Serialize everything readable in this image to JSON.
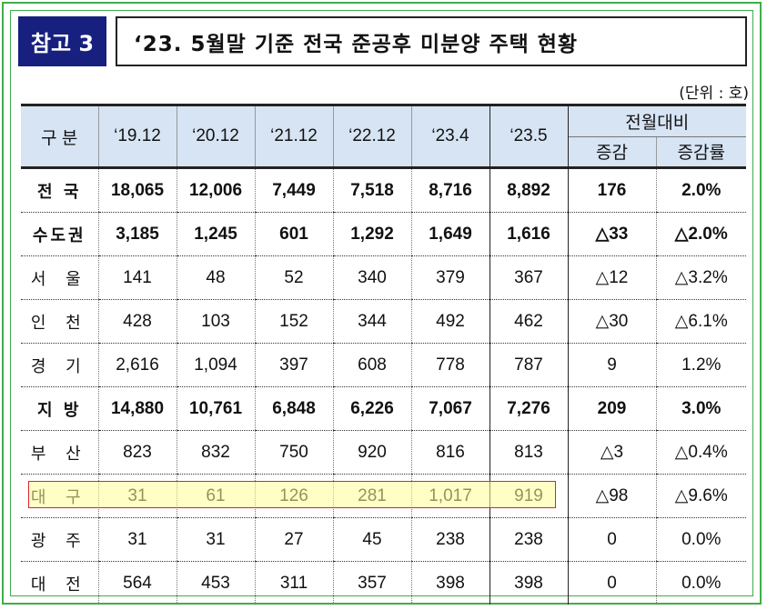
{
  "badge": "참고 3",
  "title": "‘23. 5월말 기준 전국 준공후 미분양 주택 현황",
  "unit": "(단위 : 호)",
  "header": {
    "category": "구 분",
    "periods": [
      "‘19.12",
      "‘20.12",
      "‘21.12",
      "‘22.12",
      "‘23.4",
      "‘23.5"
    ],
    "compare_group": "전월대비",
    "change": "증감",
    "change_rate": "증감률"
  },
  "rows": [
    {
      "label": "전 국",
      "v": [
        "18,065",
        "12,006",
        "7,449",
        "7,518",
        "8,716",
        "8,892"
      ],
      "change": "176",
      "rate": "2.0%",
      "bold": true
    },
    {
      "label": "수도권",
      "v": [
        "3,185",
        "1,245",
        "601",
        "1,292",
        "1,649",
        "1,616"
      ],
      "change": "△33",
      "rate": "△2.0%",
      "bold": true
    },
    {
      "label": "서 울",
      "v": [
        "141",
        "48",
        "52",
        "340",
        "379",
        "367"
      ],
      "change": "△12",
      "rate": "△3.2%",
      "bold": false
    },
    {
      "label": "인 천",
      "v": [
        "428",
        "103",
        "152",
        "344",
        "492",
        "462"
      ],
      "change": "△30",
      "rate": "△6.1%",
      "bold": false
    },
    {
      "label": "경 기",
      "v": [
        "2,616",
        "1,094",
        "397",
        "608",
        "778",
        "787"
      ],
      "change": "9",
      "rate": "1.2%",
      "bold": false
    },
    {
      "label": "지 방",
      "v": [
        "14,880",
        "10,761",
        "6,848",
        "6,226",
        "7,067",
        "7,276"
      ],
      "change": "209",
      "rate": "3.0%",
      "bold": true
    },
    {
      "label": "부 산",
      "v": [
        "823",
        "832",
        "750",
        "920",
        "816",
        "813"
      ],
      "change": "△3",
      "rate": "△0.4%",
      "bold": false
    },
    {
      "label": "대 구",
      "v": [
        "31",
        "61",
        "126",
        "281",
        "1,017",
        "919"
      ],
      "change": "△98",
      "rate": "△9.6%",
      "bold": false
    },
    {
      "label": "광 주",
      "v": [
        "31",
        "31",
        "27",
        "45",
        "238",
        "238"
      ],
      "change": "0",
      "rate": "0.0%",
      "bold": false
    },
    {
      "label": "대 전",
      "v": [
        "564",
        "453",
        "311",
        "357",
        "398",
        "398"
      ],
      "change": "0",
      "rate": "0.0%",
      "bold": false
    }
  ],
  "colors": {
    "frame": "#3fae49",
    "badge_bg": "#17207e",
    "header_bg": "#d6e4f4",
    "highlight_border": "#e2222a"
  }
}
